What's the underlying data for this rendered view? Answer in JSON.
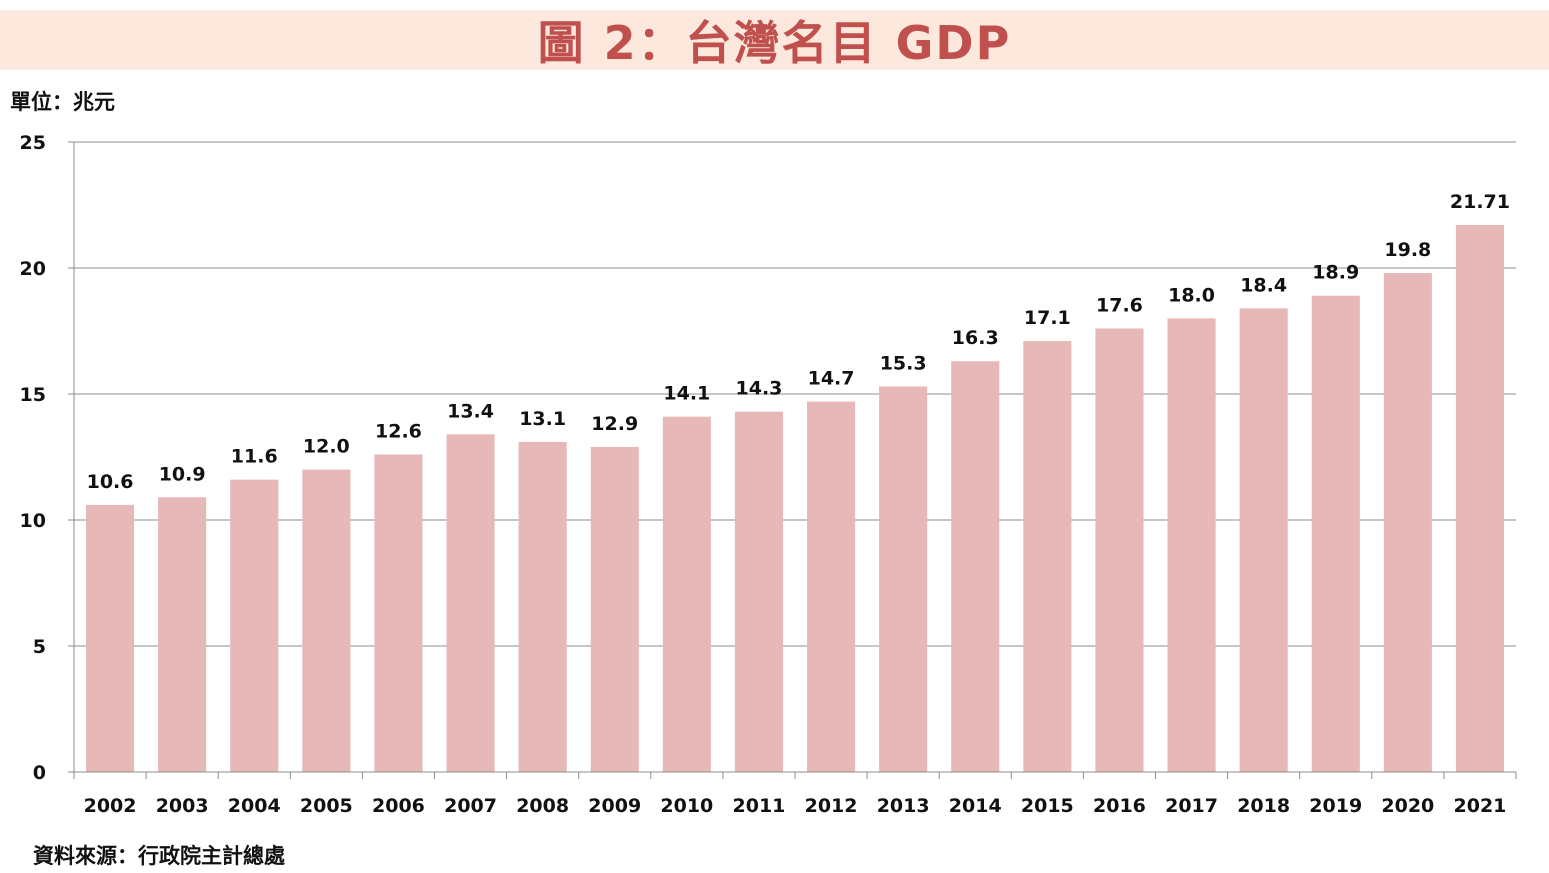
{
  "header": {
    "title": "圖 2：台灣名目 GDP"
  },
  "unit_label": "單位：兆元",
  "source_label": "資料來源：行政院主計總處",
  "colors": {
    "title_text": "#c0504d",
    "title_band": "#fce8dc",
    "bar_fill": "#e6b8b7",
    "gridline": "#8c8c8c"
  },
  "chart_data": {
    "type": "bar",
    "title": "圖 2：台灣名目 GDP",
    "xlabel": "",
    "ylabel": "單位：兆元",
    "ylim": [
      0,
      25
    ],
    "yticks": [
      0,
      5,
      10,
      15,
      20,
      25
    ],
    "grid": true,
    "legend": "none",
    "categories": [
      "2002",
      "2003",
      "2004",
      "2005",
      "2006",
      "2007",
      "2008",
      "2009",
      "2010",
      "2011",
      "2012",
      "2013",
      "2014",
      "2015",
      "2016",
      "2017",
      "2018",
      "2019",
      "2020",
      "2021"
    ],
    "values": [
      10.6,
      10.9,
      11.6,
      12.0,
      12.6,
      13.4,
      13.1,
      12.9,
      14.1,
      14.3,
      14.7,
      15.3,
      16.3,
      17.1,
      17.6,
      18.0,
      18.4,
      18.9,
      19.8,
      21.71
    ],
    "data_labels": [
      "10.6",
      "10.9",
      "11.6",
      "12.0",
      "12.6",
      "13.4",
      "13.1",
      "12.9",
      "14.1",
      "14.3",
      "14.7",
      "15.3",
      "16.3",
      "17.1",
      "17.6",
      "18.0",
      "18.4",
      "18.9",
      "19.8",
      "21.71"
    ],
    "annotations": [
      "資料來源：行政院主計總處"
    ]
  }
}
